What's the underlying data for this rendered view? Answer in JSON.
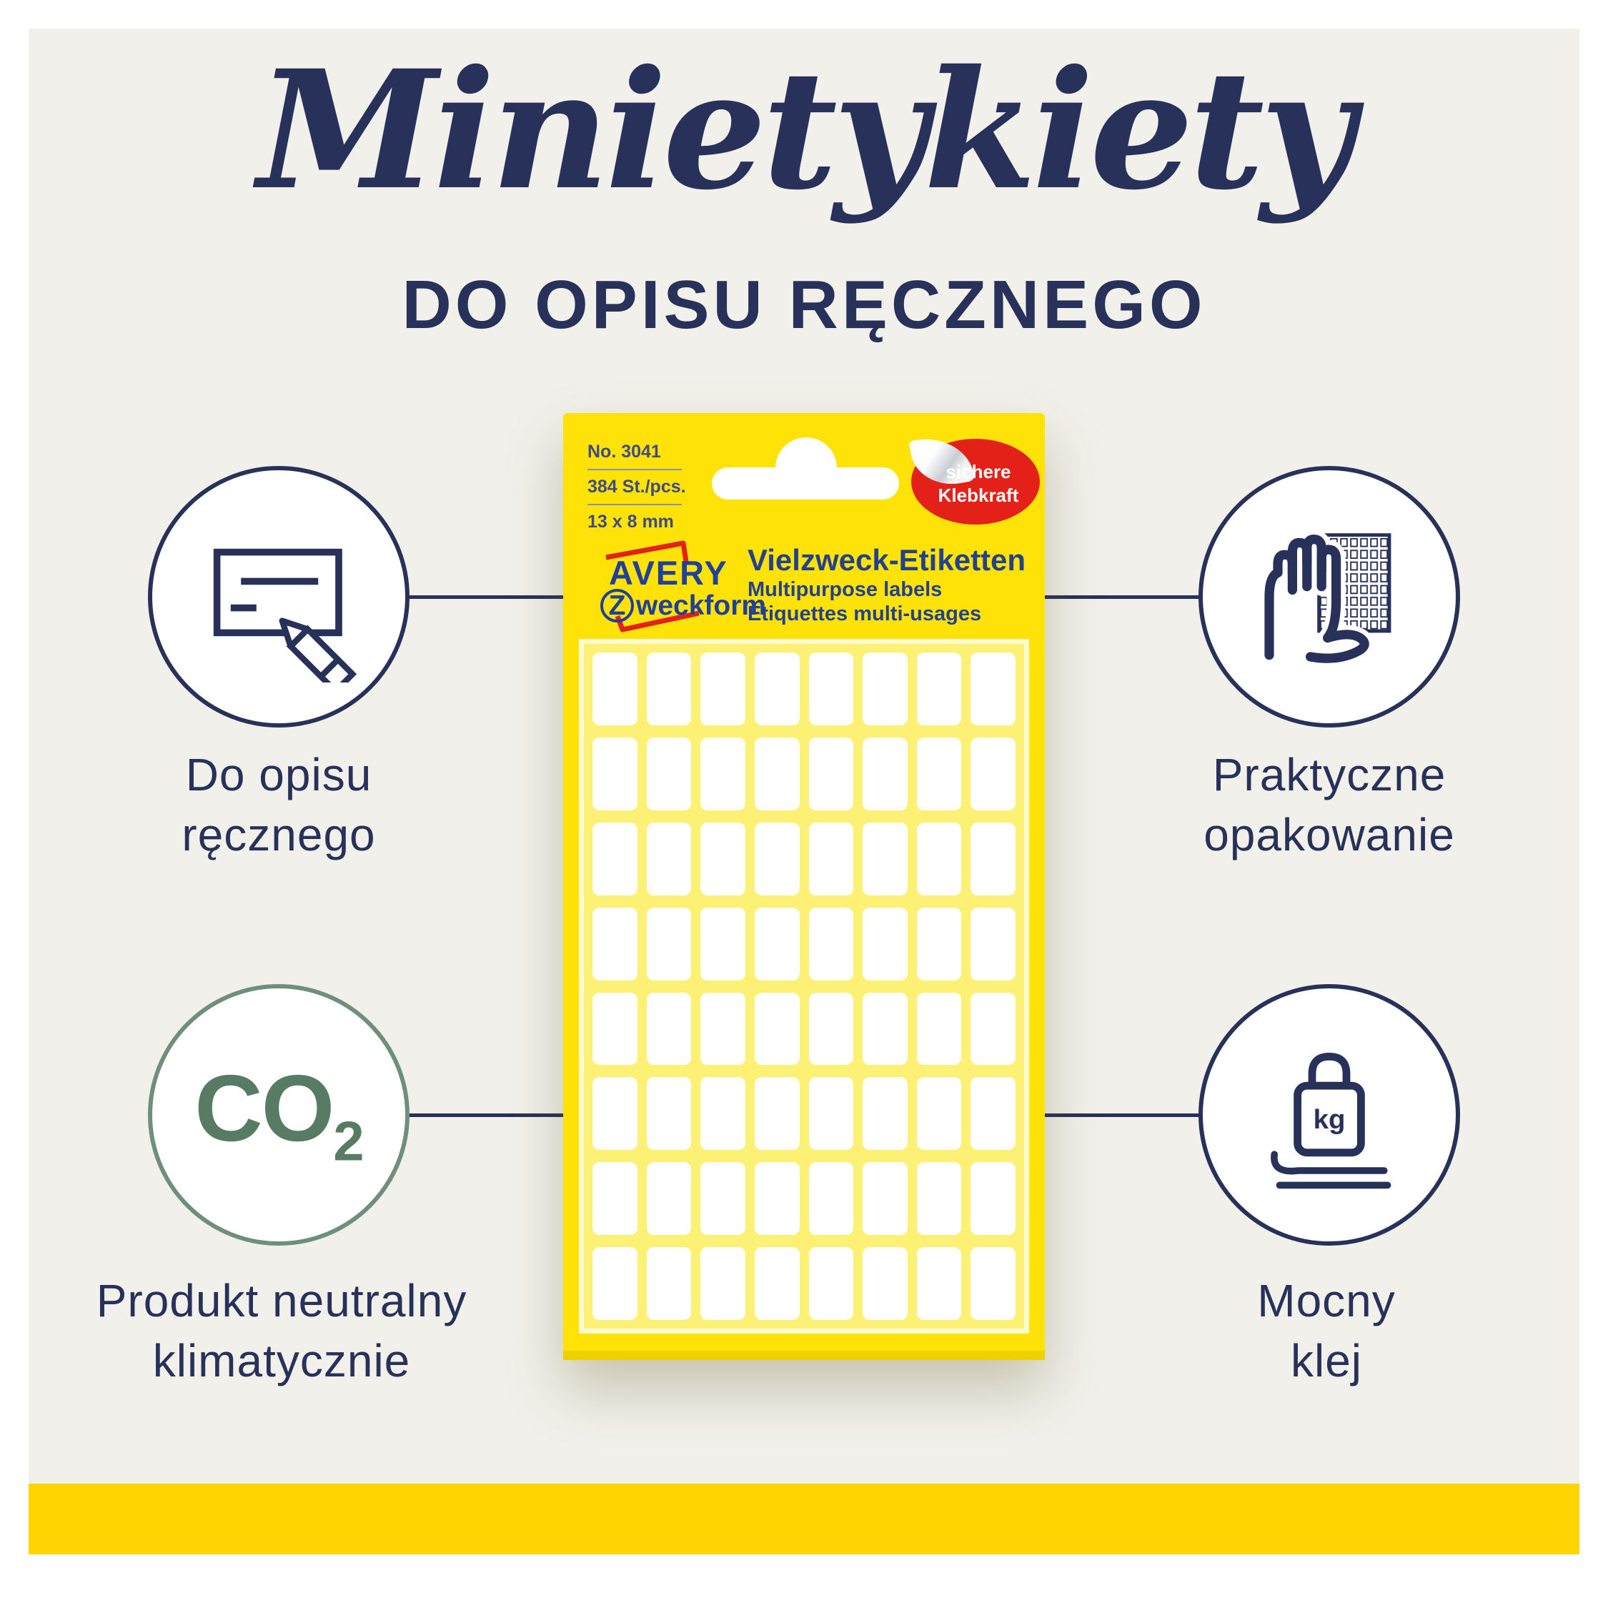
{
  "title": "Minietykiety",
  "subtitle": "DO OPISU RĘCZNEGO",
  "package": {
    "product_no": "No. 3041",
    "quantity": "384 St./pcs.",
    "dimensions": "13 x 8 mm",
    "badge": {
      "line1": "sichere",
      "line2": "Klebkraft"
    },
    "brand": {
      "name": "AVERY",
      "sub_initial": "Z",
      "sub_rest": "weckform"
    },
    "product_title": "Vielzweck-Etiketten",
    "product_sub1": "Multipurpose labels",
    "product_sub2": "Étiquettes multi-usages",
    "grid": {
      "cols": 8,
      "rows": 8
    }
  },
  "features": [
    {
      "id": "handwriting",
      "label_line1": "Do opisu",
      "label_line2": "ręcznego"
    },
    {
      "id": "packaging",
      "label_line1": "Praktyczne",
      "label_line2": "opakowanie"
    },
    {
      "id": "co2",
      "label_line1": "Produkt neutralny",
      "label_line2": "klimatycznie",
      "icon_text": "CO",
      "icon_sub": "2"
    },
    {
      "id": "adhesive",
      "label_line1": "Mocny",
      "label_line2": "klej",
      "icon_text": "kg"
    }
  ],
  "colors": {
    "navy": "#283159",
    "background": "#f1f0ea",
    "package_yellow": "#ffe207",
    "bar_yellow": "#ffd501",
    "sticker_red": "#e32119",
    "brand_blue": "#21409a",
    "eco_green": "#577c63",
    "eco_ring": "#6f8e7c"
  }
}
